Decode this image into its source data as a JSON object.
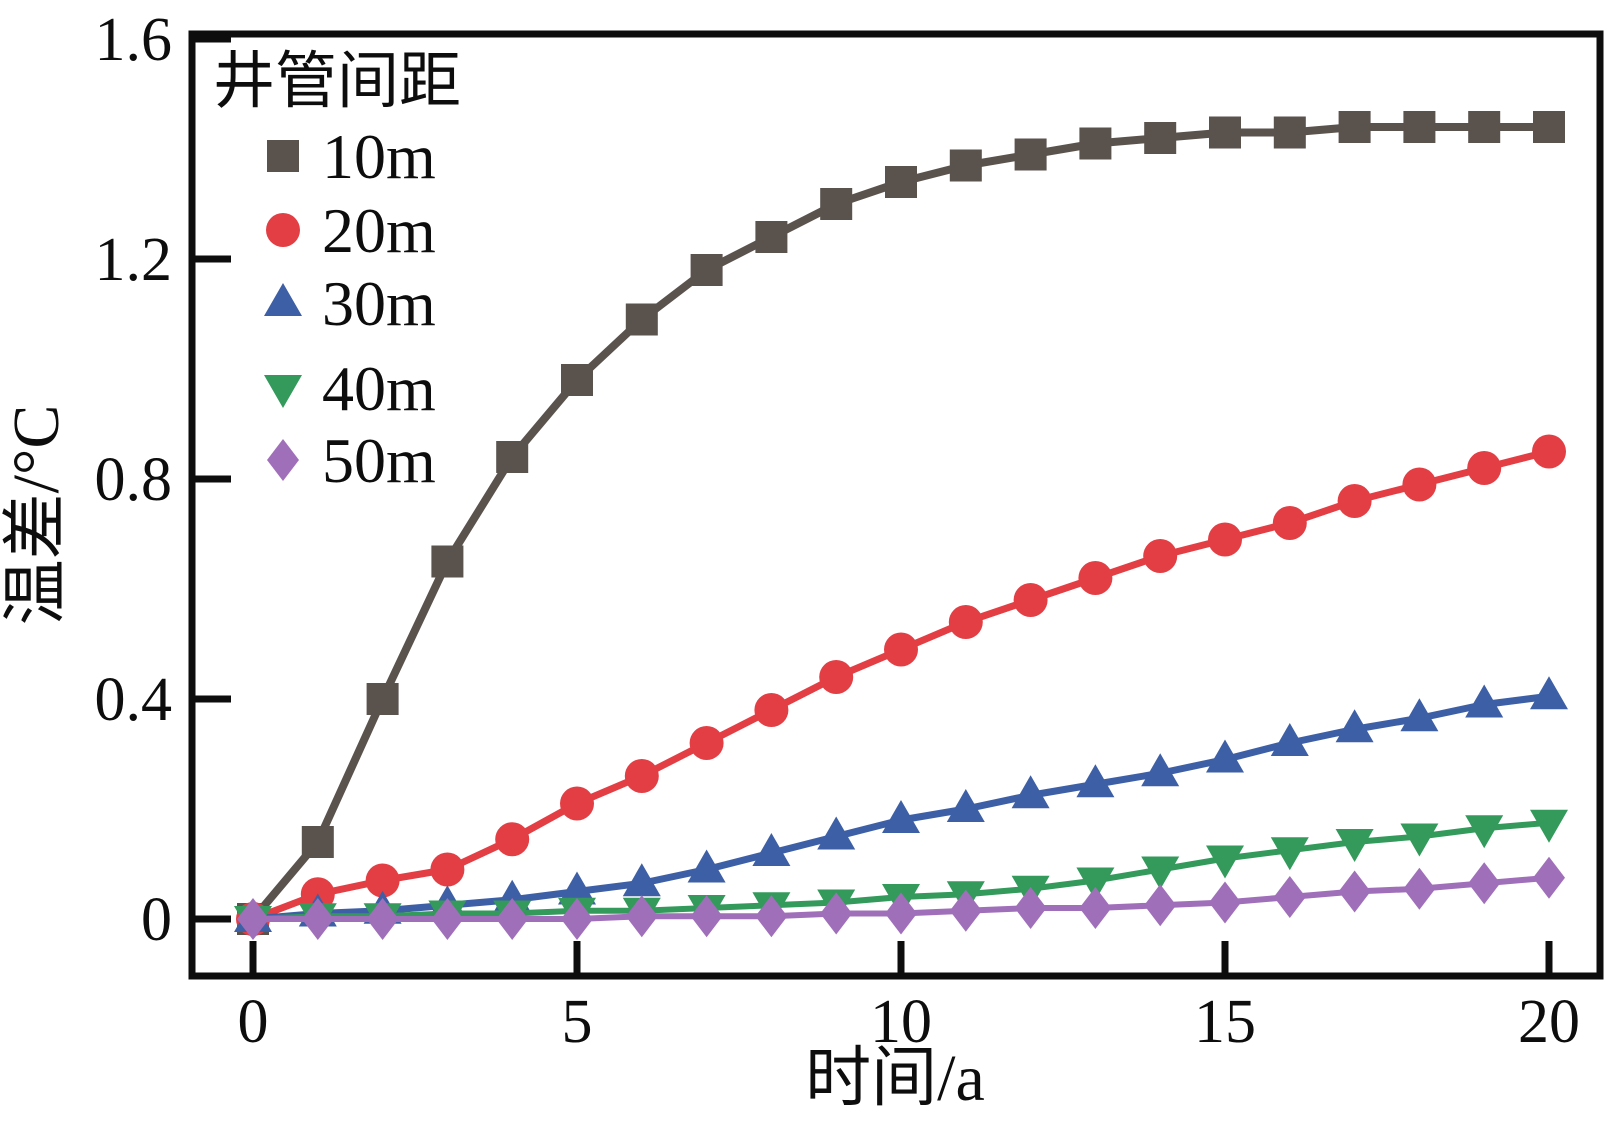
{
  "chart_data": {
    "type": "line",
    "title": "",
    "legend_title": "井管间距",
    "xlabel": "时间/a",
    "ylabel": "温差/°C",
    "xlim": [
      0,
      20
    ],
    "ylim": [
      0,
      1.6
    ],
    "x_ticks": [
      0,
      5,
      10,
      15,
      20
    ],
    "x_tick_labels": [
      "0",
      "5",
      "10",
      "15",
      "20"
    ],
    "y_ticks": [
      0,
      0.4,
      0.8,
      1.2,
      1.6
    ],
    "y_tick_labels": [
      "0",
      "0.4",
      "0.8",
      "1.2",
      "1.6"
    ],
    "grid": false,
    "legend_position": "top-left-inside",
    "frame_color": "#0d0d0d",
    "background_color": "#ffffff",
    "x": [
      0,
      1,
      2,
      3,
      4,
      5,
      6,
      7,
      8,
      9,
      10,
      11,
      12,
      13,
      14,
      15,
      16,
      17,
      18,
      19,
      20
    ],
    "series": [
      {
        "name": "10m",
        "marker": "square",
        "color": "#5a524c",
        "values": [
          0,
          0.14,
          0.4,
          0.65,
          0.84,
          0.98,
          1.09,
          1.18,
          1.24,
          1.3,
          1.34,
          1.37,
          1.39,
          1.41,
          1.42,
          1.43,
          1.43,
          1.44,
          1.44,
          1.44,
          1.44
        ]
      },
      {
        "name": "20m",
        "marker": "circle",
        "color": "#e23e44",
        "values": [
          0,
          0.045,
          0.07,
          0.09,
          0.145,
          0.21,
          0.26,
          0.32,
          0.38,
          0.44,
          0.49,
          0.54,
          0.58,
          0.62,
          0.66,
          0.69,
          0.72,
          0.76,
          0.79,
          0.82,
          0.85
        ]
      },
      {
        "name": "30m",
        "marker": "triangle-up",
        "color": "#3d5fa5",
        "values": [
          0,
          0.01,
          0.015,
          0.025,
          0.035,
          0.05,
          0.065,
          0.09,
          0.12,
          0.15,
          0.18,
          0.2,
          0.225,
          0.245,
          0.265,
          0.29,
          0.32,
          0.345,
          0.365,
          0.39,
          0.405
        ]
      },
      {
        "name": "40m",
        "marker": "triangle-down",
        "color": "#339a5b",
        "values": [
          0,
          0.005,
          0.005,
          0.01,
          0.01,
          0.015,
          0.015,
          0.02,
          0.025,
          0.03,
          0.04,
          0.045,
          0.055,
          0.07,
          0.09,
          0.11,
          0.125,
          0.14,
          0.15,
          0.165,
          0.175
        ]
      },
      {
        "name": "50m",
        "marker": "diamond",
        "color": "#a06fba",
        "values": [
          0,
          0,
          0,
          0,
          0,
          0,
          0.005,
          0.005,
          0.005,
          0.01,
          0.01,
          0.015,
          0.02,
          0.02,
          0.025,
          0.03,
          0.04,
          0.05,
          0.055,
          0.065,
          0.075
        ]
      }
    ]
  }
}
